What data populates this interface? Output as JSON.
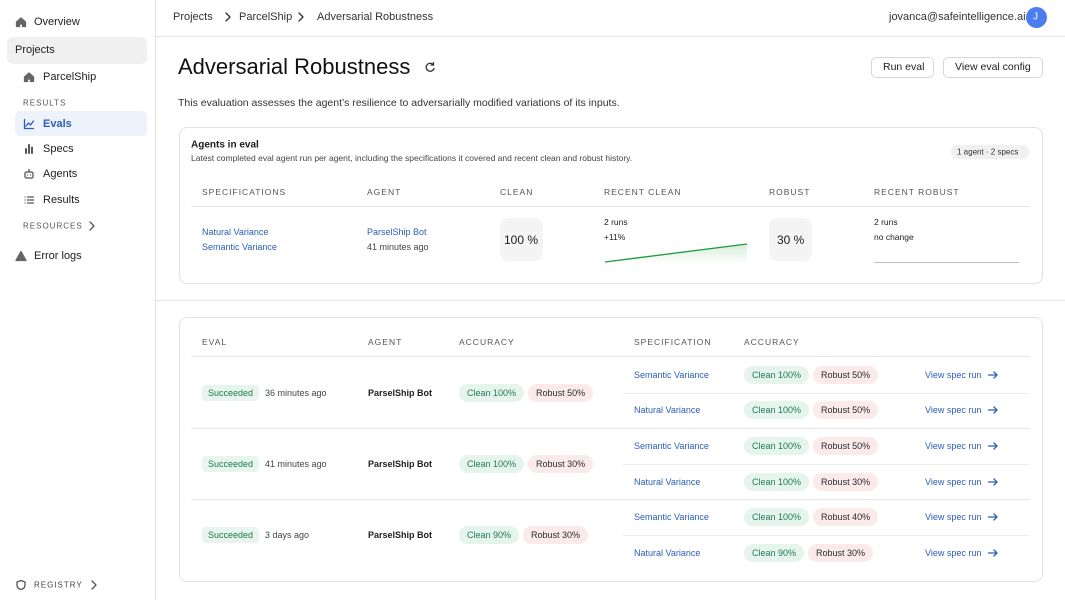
{
  "sidebar": {
    "overview": "Overview",
    "projects": "Projects",
    "project": "ParcelShip",
    "results_heading": "RESULTS",
    "results_links": [
      "Evals",
      "Specs",
      "Agents",
      "Results"
    ],
    "resources": "RESOURCES",
    "error_logs": "Error logs",
    "registry": "REGISTRY"
  },
  "header": {
    "breadcrumbs": [
      "Projects",
      "ParcelShip",
      "Adversarial Robustness"
    ],
    "user_email": "jovanca@safeintelligence.ai",
    "avatar": "J"
  },
  "page": {
    "title": "Adversarial Robustness",
    "description": "This evaluation assesses the agent’s resilience to adversarially modified variations of its inputs.",
    "actions": [
      "Run eval",
      "View eval config"
    ]
  },
  "agents_card": {
    "title": "Agents in eval",
    "subtitle": "Latest completed eval agent run per agent, including the specifications it covered and recent clean and robust history.",
    "badge": "1 agent · 2 specs",
    "columns": [
      "SPECIFICATIONS",
      "AGENT",
      "CLEAN",
      "RECENT CLEAN",
      "ROBUST",
      "RECENT ROBUST"
    ],
    "row": {
      "specs": [
        "Natural Variance",
        "Semantic Variance"
      ],
      "agent": "ParselShip Bot",
      "agent_time": "41 minutes ago",
      "clean": "100 %",
      "recent_clean": [
        "2 runs",
        "+11%"
      ],
      "robust": "30 %",
      "recent_robust": [
        "2 runs",
        "no change"
      ]
    }
  },
  "evals_table": {
    "columns": [
      "EVAL",
      "AGENT",
      "ACCURACY",
      "SPECIFICATION",
      "ACCURACY"
    ],
    "rows": [
      {
        "status": "Succeeded",
        "time": "36 minutes ago",
        "agent": "ParselShip Bot",
        "clean": "Clean 100%",
        "robust": "Robust 50%",
        "specs": [
          {
            "name": "Semantic Variance",
            "clean": "Clean 100%",
            "robust": "Robust 50%",
            "link": "View spec run"
          },
          {
            "name": "Natural Variance",
            "clean": "Clean 100%",
            "robust": "Robust 50%",
            "link": "View spec run"
          }
        ]
      },
      {
        "status": "Succeeded",
        "time": "41 minutes ago",
        "agent": "ParselShip Bot",
        "clean": "Clean 100%",
        "robust": "Robust 30%",
        "specs": [
          {
            "name": "Semantic Variance",
            "clean": "Clean 100%",
            "robust": "Robust 50%",
            "link": "View spec run"
          },
          {
            "name": "Natural Variance",
            "clean": "Clean 100%",
            "robust": "Robust 30%",
            "link": "View spec run"
          }
        ]
      },
      {
        "status": "Succeeded",
        "time": "3 days ago",
        "agent": "ParselShip Bot",
        "clean": "Clean 90%",
        "robust": "Robust 30%",
        "specs": [
          {
            "name": "Semantic Variance",
            "clean": "Clean 100%",
            "robust": "Robust 40%",
            "link": "View spec run"
          },
          {
            "name": "Natural Variance",
            "clean": "Clean 90%",
            "robust": "Robust 30%",
            "link": "View spec run"
          }
        ]
      }
    ]
  }
}
